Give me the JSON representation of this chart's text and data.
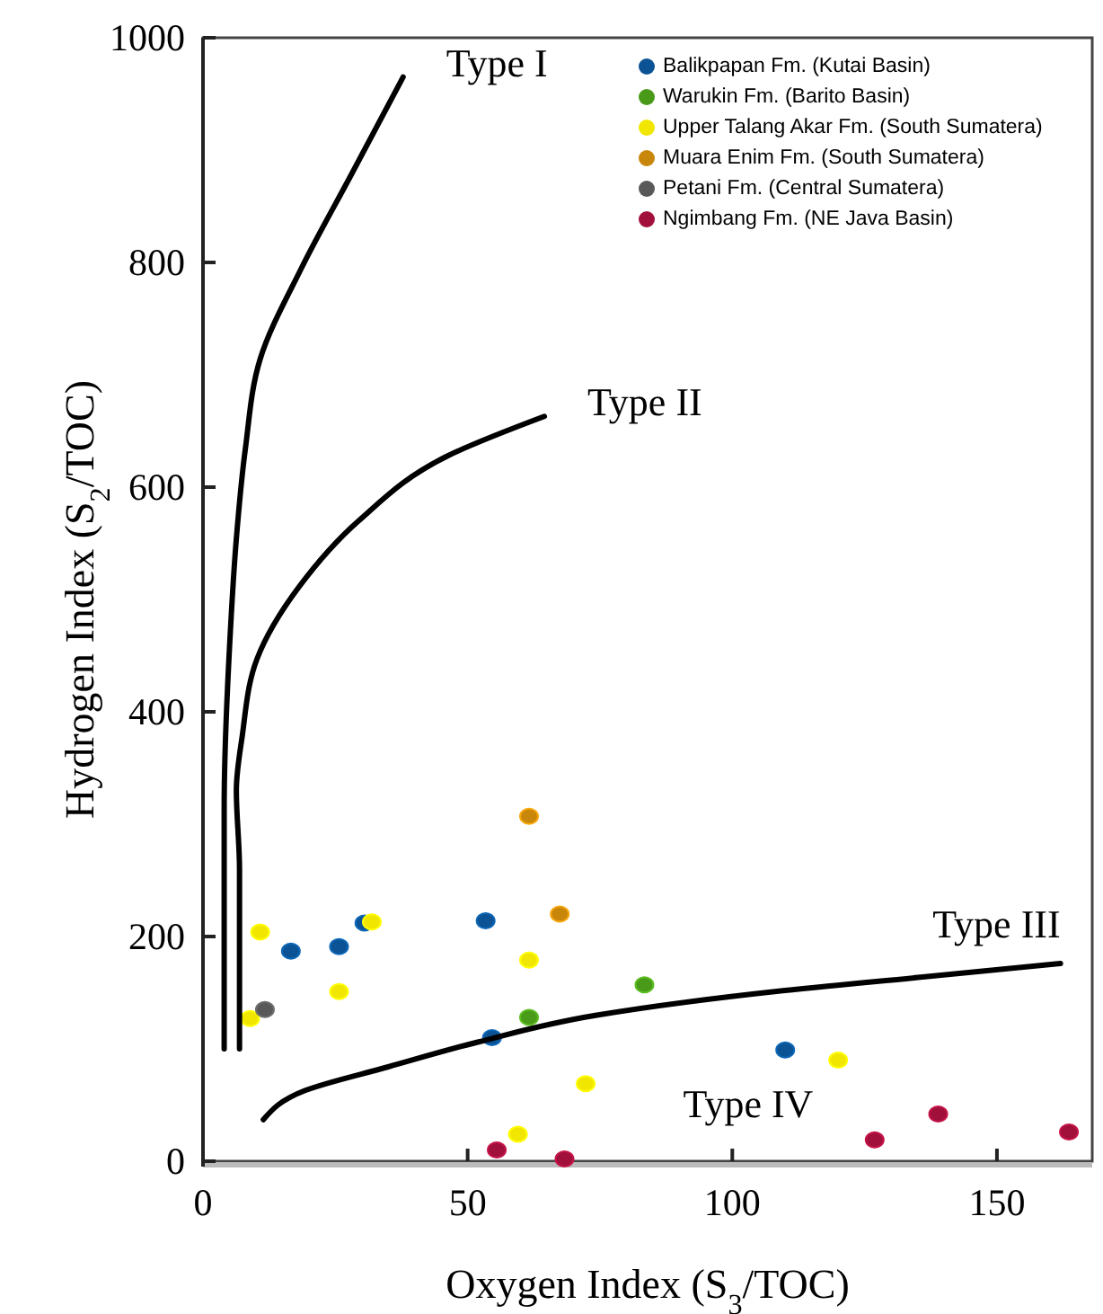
{
  "chart_data": {
    "type": "scatter",
    "xlabel": "Oxygen Index (S$_{3}$/TOC)",
    "ylabel": "Hydrogen Index (S$_{2}$/TOC)",
    "xlim": [
      0,
      168
    ],
    "ylim": [
      0,
      1000
    ],
    "xticks": [
      0,
      50,
      100,
      150
    ],
    "yticks": [
      0,
      200,
      400,
      600,
      800,
      1000
    ],
    "grid": false,
    "legend": "top right",
    "marker": "circle",
    "series": [
      {
        "name": "Balikpapan Fm. (Kutai Basin)",
        "color": "#0b5394",
        "x": [
          16.6,
          25.7,
          30.5,
          53.4,
          54.6,
          110
        ],
        "values": [
          187,
          191,
          212,
          214,
          110,
          99
        ]
      },
      {
        "name": "Warukin Fm. (Barito Basin)",
        "color": "#4a9a1a",
        "x": [
          61.6,
          83.4
        ],
        "values": [
          128,
          157
        ]
      },
      {
        "name": "Upper Talang Akar Fm. (South Sumatera)",
        "color": "#f0e600",
        "x": [
          10.8,
          8.9,
          25.7,
          31.9,
          61.6,
          72.3,
          120,
          59.5
        ],
        "values": [
          204,
          127,
          151,
          213,
          179,
          69,
          90,
          24
        ]
      },
      {
        "name": "Muara Enim Fm. (South Sumatera)",
        "color": "#c8860a",
        "x": [
          61.6,
          67.4
        ],
        "values": [
          307,
          220
        ]
      },
      {
        "name": "Petani Fm. (Central Sumatera)",
        "color": "#595959",
        "x": [
          11.7
        ],
        "values": [
          135
        ]
      },
      {
        "name": "Ngimbang Fm. (NE Java Basin)",
        "color": "#a0103a",
        "x": [
          55.5,
          68.3,
          126.9,
          138.9,
          163.6
        ],
        "values": [
          10,
          2,
          19,
          42,
          26
        ]
      },
      {
        "type": "line",
        "name": "Type I",
        "color": "#000000",
        "marker": "none",
        "x": [
          4,
          4,
          4,
          5.2,
          6.3,
          8,
          10.8,
          18.5,
          28,
          37.8
        ],
        "values": [
          100,
          207,
          314,
          474,
          554,
          634,
          714,
          794,
          878,
          965
        ]
      },
      {
        "type": "line",
        "name": "Type II",
        "color": "#000000",
        "marker": "none",
        "x": [
          6.9,
          6.9,
          6.3,
          7.4,
          10.2,
          18.1,
          29.4,
          46.3,
          64.5
        ],
        "values": [
          100,
          260,
          330,
          378,
          447,
          511,
          570,
          628,
          663
        ]
      },
      {
        "type": "line",
        "name": "Type III",
        "color": "#000000",
        "marker": "none",
        "x": [
          11.4,
          19.3,
          35,
          51.9,
          74.4,
          108,
          136,
          162
        ],
        "values": [
          37,
          63,
          84,
          106,
          130,
          151,
          164,
          176
        ]
      }
    ],
    "annotations": [
      "Type IV"
    ]
  }
}
